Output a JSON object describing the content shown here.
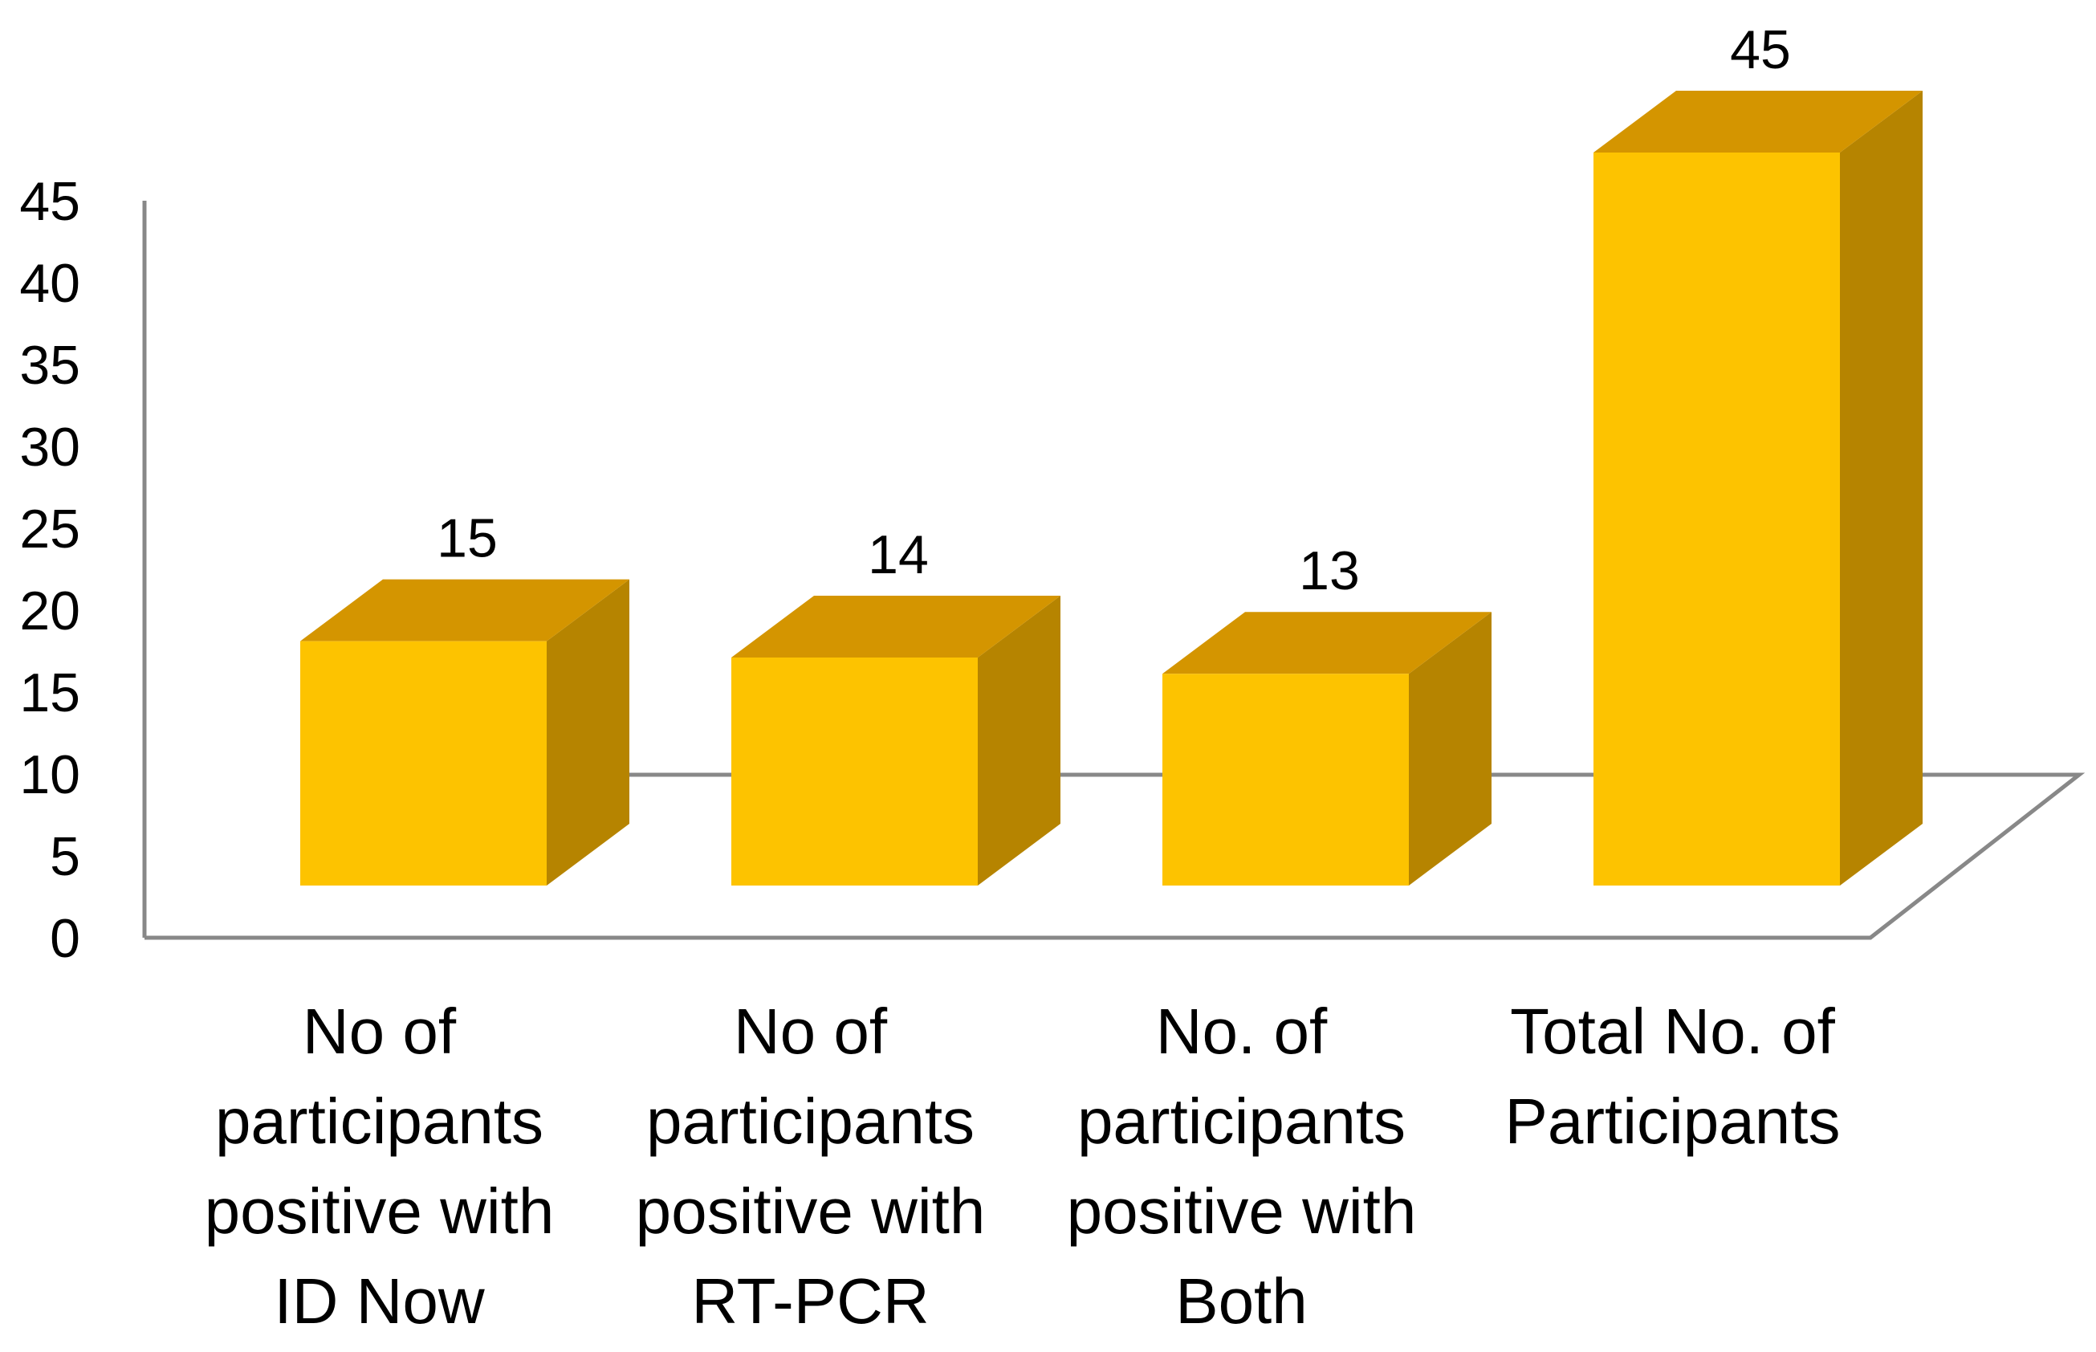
{
  "chart_data": {
    "type": "bar",
    "style": "3d",
    "categories": [
      "No of participants positive with ID Now",
      "No of participants positive with RT-PCR",
      "No. of participants positive with Both",
      "Total No. of Participants"
    ],
    "category_lines": [
      [
        "No of",
        "participants",
        "positive with",
        "ID Now"
      ],
      [
        "No of",
        "participants",
        "positive with",
        "RT-PCR"
      ],
      [
        "No. of",
        "participants",
        "positive with",
        "Both"
      ],
      [
        "Total No. of",
        "Participants"
      ]
    ],
    "values": [
      15,
      14,
      13,
      45
    ],
    "data_labels": [
      "15",
      "14",
      "13",
      "45"
    ],
    "yticks": [
      "0",
      "5",
      "10",
      "15",
      "20",
      "25",
      "30",
      "35",
      "40",
      "45"
    ],
    "ylim": [
      0,
      45
    ],
    "title": "",
    "xlabel": "",
    "ylabel": "",
    "grid": false,
    "legend": "none",
    "colors": {
      "front": "#FDC300",
      "top": "#D49500",
      "side": "#B68400",
      "axis": "#888888"
    }
  }
}
